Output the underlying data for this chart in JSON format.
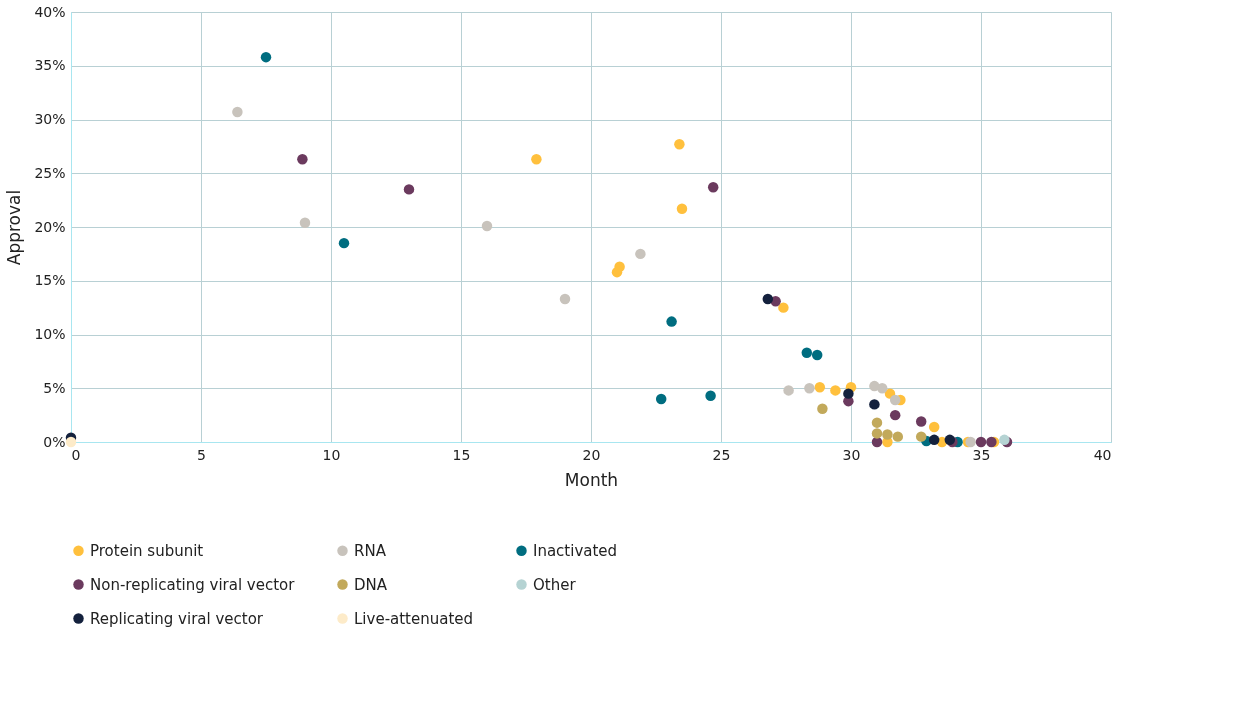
{
  "chart_data": {
    "type": "scatter",
    "xlabel": "Month",
    "ylabel": "Approval",
    "xlim": [
      0,
      40
    ],
    "xticks": [
      0,
      5,
      10,
      15,
      20,
      25,
      30,
      35,
      40
    ],
    "ylim": [
      0,
      40
    ],
    "yticks": [
      {
        "value": 0,
        "label": "0%"
      },
      {
        "value": 5,
        "label": "5%"
      },
      {
        "value": 10,
        "label": "10%"
      },
      {
        "value": 15,
        "label": "15%"
      },
      {
        "value": 20,
        "label": "20%"
      },
      {
        "value": 25,
        "label": "25%"
      },
      {
        "value": 30,
        "label": "30%"
      },
      {
        "value": 35,
        "label": "35%"
      },
      {
        "value": 40,
        "label": "40%"
      }
    ],
    "grid": true,
    "legend": "bottom",
    "marker": "circle",
    "series": [
      {
        "name": "Protein subunit",
        "color": "#ffc03d",
        "x": [
          17.9,
          23.4,
          23.5,
          21.1,
          21.0,
          27.4,
          28.8,
          29.4,
          30.0,
          31.5,
          31.9,
          33.2,
          31.4,
          33.5,
          34.5,
          35.5
        ],
        "values": [
          26.3,
          27.7,
          21.7,
          16.3,
          15.8,
          12.5,
          5.1,
          4.8,
          5.1,
          4.5,
          3.9,
          1.4,
          0,
          0,
          0,
          0
        ]
      },
      {
        "name": "RNA",
        "color": "#c8c3bc",
        "x": [
          6.4,
          9.0,
          16.0,
          21.9,
          19.0,
          27.6,
          28.4,
          30.9,
          31.2,
          31.7,
          34.6
        ],
        "values": [
          30.7,
          20.4,
          20.1,
          17.5,
          13.3,
          4.8,
          5.0,
          5.2,
          5.0,
          3.9,
          0
        ]
      },
      {
        "name": "Inactivated",
        "color": "#006d80",
        "x": [
          7.5,
          10.5,
          23.1,
          22.7,
          24.6,
          28.3,
          28.7,
          32.9,
          34.1
        ],
        "values": [
          35.8,
          18.5,
          11.2,
          4.0,
          4.3,
          8.3,
          8.1,
          0.1,
          0
        ]
      },
      {
        "name": "Non-replicating viral vector",
        "color": "#6b3a5e",
        "x": [
          8.9,
          13.0,
          24.7,
          27.1,
          29.9,
          31.0,
          31.7,
          32.7,
          33.9,
          35.0,
          35.4,
          36.0
        ],
        "values": [
          26.3,
          23.5,
          23.7,
          13.1,
          3.8,
          0,
          2.5,
          1.9,
          0,
          0,
          0,
          0
        ]
      },
      {
        "name": "DNA",
        "color": "#c2a95b",
        "x": [
          28.9,
          31.0,
          31.0,
          31.4,
          31.8,
          32.7
        ],
        "values": [
          3.1,
          1.8,
          0.8,
          0.7,
          0.5,
          0.5
        ]
      },
      {
        "name": "Other",
        "color": "#b5d3d3",
        "x": [
          35.9
        ],
        "values": [
          0.2
        ]
      },
      {
        "name": "Replicating viral vector",
        "color": "#14213d",
        "x": [
          0,
          26.8,
          29.9,
          30.9,
          33.2,
          33.8
        ],
        "values": [
          0.4,
          13.3,
          4.5,
          3.5,
          0.2,
          0.2
        ]
      },
      {
        "name": "Live-attenuated",
        "color": "#fdebc9",
        "x": [
          0
        ],
        "values": [
          0
        ]
      }
    ]
  }
}
